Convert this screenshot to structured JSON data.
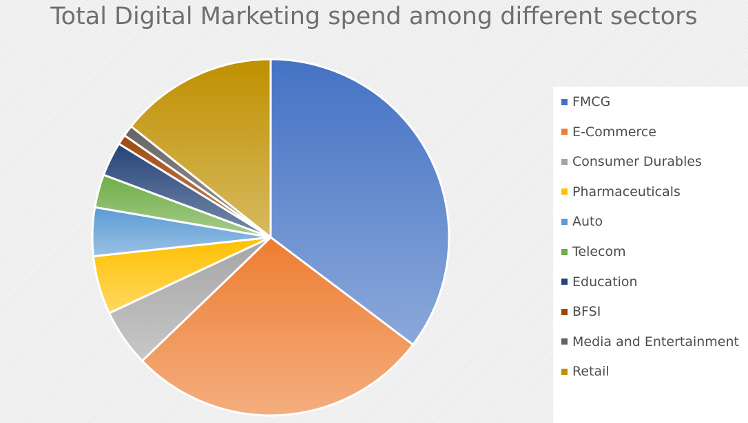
{
  "chart_data": {
    "type": "pie",
    "title": "Total Digital Marketing spend among different sectors",
    "categories": [
      "FMCG",
      "E-Commerce",
      "Consumer Durables",
      "Pharmaceuticals",
      "Auto",
      "Telecom",
      "Education",
      "BFSI",
      "Media and Entertainment",
      "Retail"
    ],
    "values": [
      35.3,
      27.5,
      5.2,
      5.3,
      4.4,
      3.0,
      3.1,
      0.9,
      1.0,
      14.3
    ],
    "value_unit": "percent of total",
    "colors": [
      "#4472C4",
      "#ED7D31",
      "#A5A5A5",
      "#FFC000",
      "#5B9BD5",
      "#70AD47",
      "#264478",
      "#9E480E",
      "#636363",
      "#BF9000"
    ],
    "start_angle_deg": 0,
    "direction": "clockwise",
    "legend_position": "right"
  }
}
